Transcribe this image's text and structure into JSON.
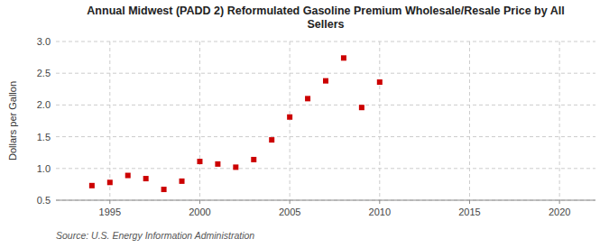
{
  "chart_data": {
    "type": "scatter",
    "title": "Annual Midwest (PADD 2) Reformulated Gasoline Premium Wholesale/Resale Price by All\nSellers",
    "ylabel": "Dollars per Gallon",
    "source": "Source: U.S. Energy Information Administration",
    "x": [
      1994,
      1995,
      1996,
      1997,
      1998,
      1999,
      2000,
      2001,
      2002,
      2003,
      2004,
      2005,
      2006,
      2007,
      2008,
      2009,
      2010
    ],
    "values": [
      0.73,
      0.78,
      0.89,
      0.84,
      0.67,
      0.8,
      1.11,
      1.07,
      1.02,
      1.14,
      1.45,
      1.81,
      2.1,
      2.38,
      2.74,
      1.96,
      2.36
    ],
    "color": "#cc0000",
    "marker": "square",
    "xlim": [
      1992,
      2022
    ],
    "ylim": [
      0.5,
      3.0
    ],
    "xticks": [
      1995,
      2000,
      2005,
      2010,
      2015,
      2020
    ],
    "yticks": [
      0.5,
      {
        "value": 1.0,
        "label": "1.0"
      },
      1.5,
      {
        "value": 2.0,
        "label": "2.0"
      },
      2.5,
      {
        "value": 3.0,
        "label": "3.0"
      }
    ],
    "grid": true
  }
}
